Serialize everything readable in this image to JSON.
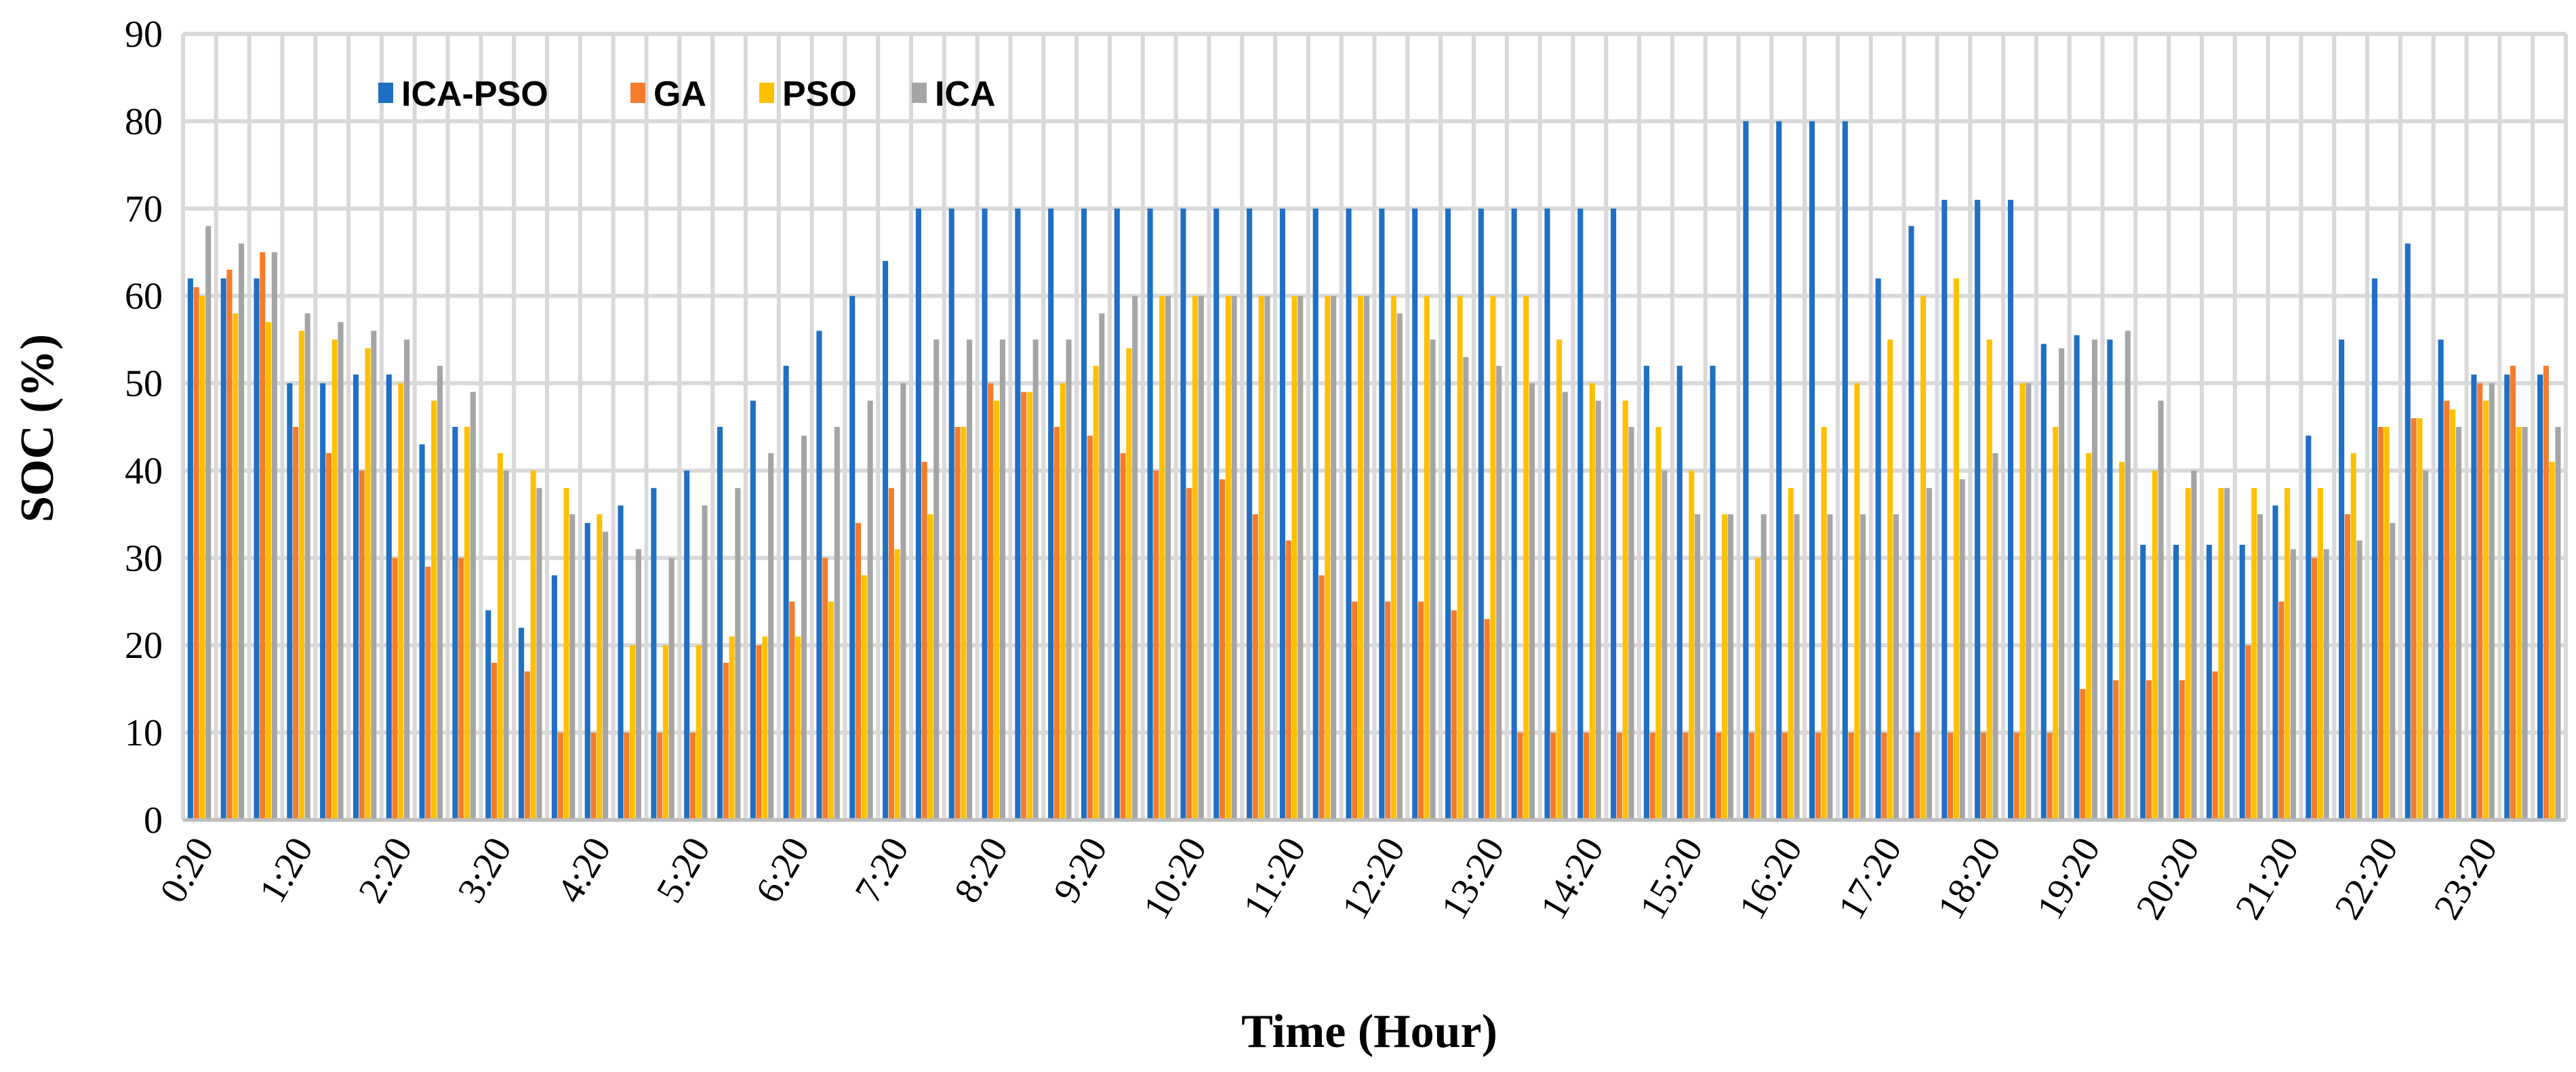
{
  "chart_data": {
    "type": "bar",
    "title": "",
    "xlabel": "Time (Hour)",
    "ylabel": "SOC (%)",
    "ylim": [
      0,
      90
    ],
    "yticks": [
      0,
      10,
      20,
      30,
      40,
      50,
      60,
      70,
      80,
      90
    ],
    "grid": true,
    "legend_position": "top-left",
    "categories": [
      "0:20",
      "0:40",
      "1:00",
      "1:20",
      "1:40",
      "2:00",
      "2:20",
      "2:40",
      "3:00",
      "3:20",
      "3:40",
      "4:00",
      "4:20",
      "4:40",
      "5:00",
      "5:20",
      "5:40",
      "6:00",
      "6:20",
      "6:40",
      "7:00",
      "7:20",
      "7:40",
      "8:00",
      "8:20",
      "8:40",
      "9:00",
      "9:20",
      "9:40",
      "10:00",
      "10:20",
      "10:40",
      "11:00",
      "11:20",
      "11:40",
      "12:00",
      "12:20",
      "12:40",
      "13:00",
      "13:20",
      "13:40",
      "14:00",
      "14:20",
      "14:40",
      "15:00",
      "15:20",
      "15:40",
      "16:00",
      "16:20",
      "16:40",
      "17:00",
      "17:20",
      "17:40",
      "18:00",
      "18:20",
      "18:40",
      "19:00",
      "19:20",
      "19:40",
      "20:00",
      "20:20",
      "20:40",
      "21:00",
      "21:20",
      "21:40",
      "22:00",
      "22:20",
      "22:40",
      "23:00",
      "23:20",
      "23:40",
      "24:00"
    ],
    "xtick_labels": [
      "0:20",
      "1:20",
      "2:20",
      "3:20",
      "4:20",
      "5:20",
      "6:20",
      "7:20",
      "8:20",
      "9:20",
      "10:20",
      "11:20",
      "12:20",
      "13:20",
      "14:20",
      "15:20",
      "16:20",
      "17:20",
      "18:20",
      "19:20",
      "20:20",
      "21:20",
      "22:20",
      "23:20"
    ],
    "series": [
      {
        "name": "ICA-PSO",
        "color": "#1F6FC4",
        "values": [
          62,
          62,
          62,
          50,
          50,
          51,
          51,
          43,
          45,
          24,
          22,
          28,
          34,
          36,
          38,
          40,
          45,
          48,
          52,
          56,
          60,
          64,
          70,
          70,
          70,
          70,
          70,
          70,
          70,
          70,
          70,
          70,
          70,
          70,
          70,
          70,
          70,
          70,
          70,
          70,
          70,
          70,
          70,
          70,
          52,
          52,
          52,
          80,
          80,
          80,
          80,
          62,
          68,
          71,
          71,
          71,
          54.5,
          55.5,
          55,
          31.5,
          31.5,
          31.5,
          31.5,
          36,
          44,
          55,
          62,
          66,
          55,
          51,
          51,
          51
        ]
      },
      {
        "name": "GA",
        "color": "#F57C2B",
        "values": [
          61,
          63,
          65,
          45,
          42,
          40,
          30,
          29,
          30,
          18,
          17,
          10,
          10,
          10,
          10,
          10,
          18,
          20,
          25,
          30,
          34,
          38,
          41,
          45,
          50,
          49,
          45,
          44,
          42,
          40,
          38,
          39,
          35,
          32,
          28,
          25,
          25,
          25,
          24,
          23,
          10,
          10,
          10,
          10,
          10,
          10,
          10,
          10,
          10,
          10,
          10,
          10,
          10,
          10,
          10,
          10,
          10,
          15,
          16,
          16,
          16,
          17,
          20,
          25,
          30,
          35,
          45,
          46,
          48,
          50,
          52,
          52
        ]
      },
      {
        "name": "PSO",
        "color": "#FFC000",
        "values": [
          60,
          58,
          57,
          56,
          55,
          54,
          50,
          48,
          45,
          42,
          40,
          38,
          35,
          20,
          20,
          20,
          21,
          21,
          21,
          25,
          28,
          31,
          35,
          45,
          48,
          49,
          50,
          52,
          54,
          60,
          60,
          60,
          60,
          60,
          60,
          60,
          60,
          60,
          60,
          60,
          60,
          55,
          50,
          48,
          45,
          40,
          35,
          30,
          38,
          45,
          50,
          55,
          60,
          62,
          55,
          50,
          45,
          42,
          41,
          40,
          38,
          38,
          38,
          38,
          38,
          42,
          45,
          46,
          47,
          48,
          45,
          41
        ]
      },
      {
        "name": "ICA",
        "color": "#A5A5A5",
        "values": [
          68,
          66,
          65,
          58,
          57,
          56,
          55,
          52,
          49,
          40,
          38,
          35,
          33,
          31,
          30,
          36,
          38,
          42,
          44,
          45,
          48,
          50,
          55,
          55,
          55,
          55,
          55,
          58,
          60,
          60,
          60,
          60,
          60,
          60,
          60,
          60,
          58,
          55,
          53,
          52,
          50,
          49,
          48,
          45,
          40,
          35,
          35,
          35,
          35,
          35,
          35,
          35,
          38,
          39,
          42,
          50,
          54,
          55,
          56,
          48,
          40,
          38,
          35,
          31,
          31,
          32,
          34,
          40,
          45,
          50,
          45,
          45
        ]
      }
    ]
  }
}
